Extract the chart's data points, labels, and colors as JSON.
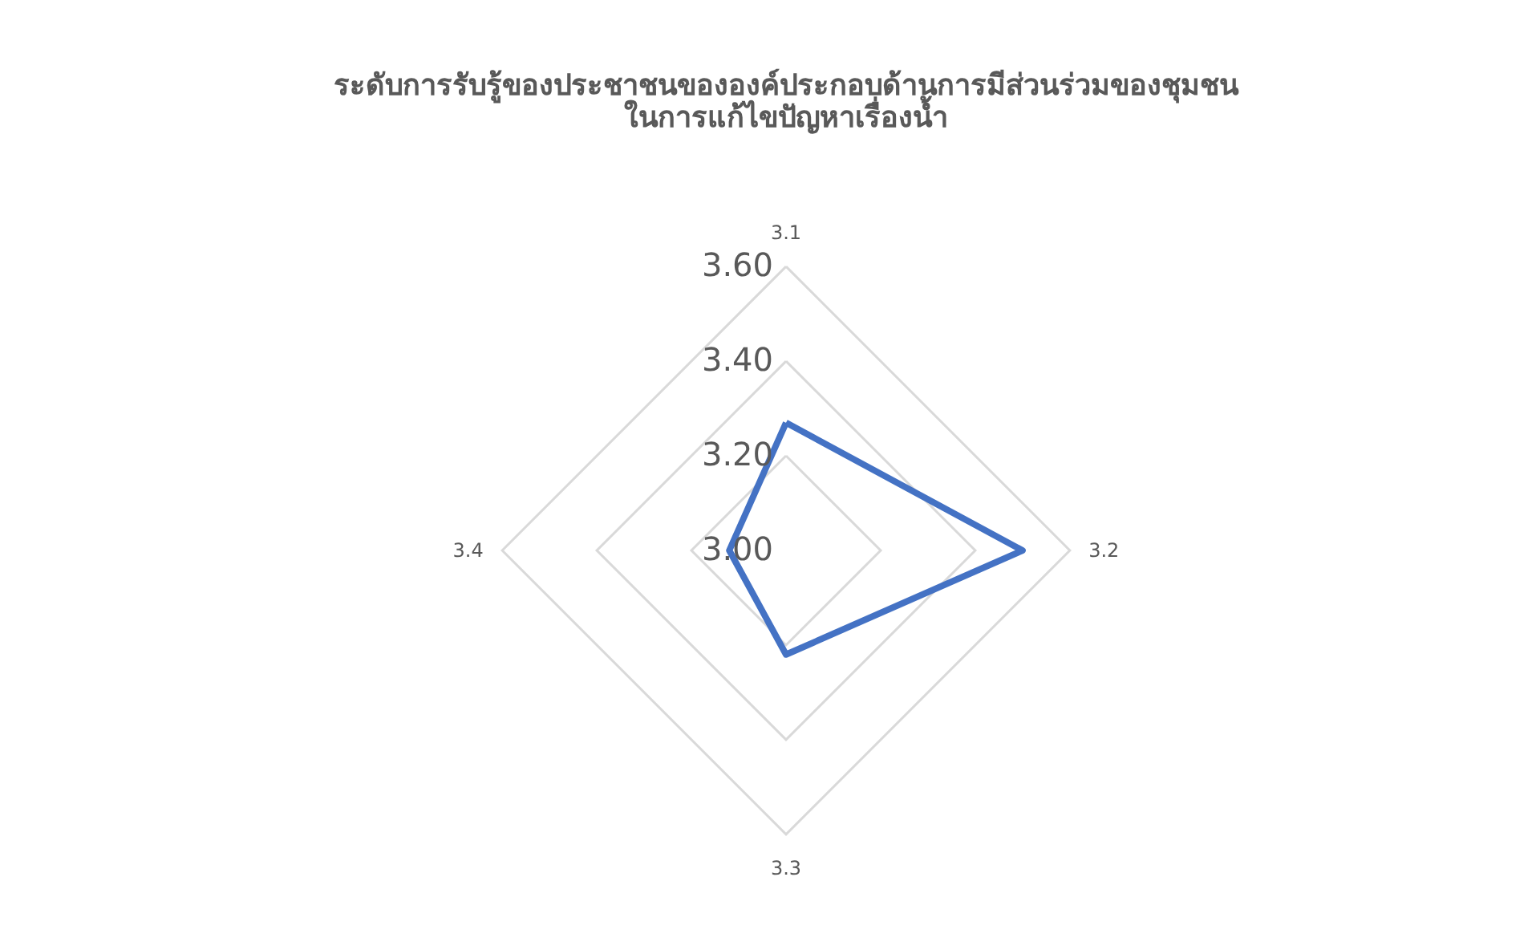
{
  "chart_data": {
    "type": "radar",
    "title": "ระดับการรับรู้ของประชาชนขององค์ประกอบด้านการมีส่วนร่วมของชุมชน\nในการแก้ไขปัญหาเรื่องน้ำ",
    "categories": [
      "3.1",
      "3.2",
      "3.3",
      "3.4"
    ],
    "series": [
      {
        "color": "#4472c4",
        "values": [
          3.27,
          3.5,
          3.22,
          3.12
        ]
      }
    ],
    "ylim": [
      3.0,
      3.6
    ],
    "yticks": [
      {
        "value": 3.0,
        "label": "3.00"
      },
      {
        "value": 3.2,
        "label": "3.20"
      },
      {
        "value": 3.4,
        "label": "3.40"
      },
      {
        "value": 3.6,
        "label": "3.60"
      }
    ],
    "grid": true,
    "marker": "none",
    "line_style": "solid"
  }
}
